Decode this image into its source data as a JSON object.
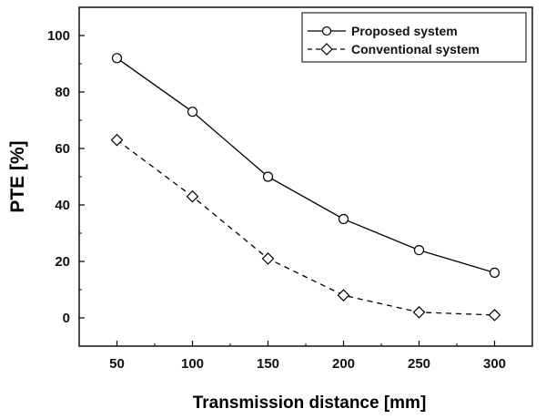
{
  "chart_data": {
    "type": "line",
    "title": "",
    "xlabel": "Transmission distance [mm]",
    "ylabel": "PTE [%]",
    "x": [
      50,
      100,
      150,
      200,
      250,
      300
    ],
    "xlim": [
      25,
      325
    ],
    "ylim": [
      -10,
      110
    ],
    "xticks": [
      "50",
      "100",
      "150",
      "200",
      "250",
      "300"
    ],
    "yticks": [
      "0",
      "20",
      "40",
      "60",
      "80",
      "100"
    ],
    "grid": false,
    "legend_position": "top-right",
    "series": [
      {
        "name": "Proposed system",
        "values": [
          92,
          73,
          50,
          35,
          24,
          16
        ],
        "marker": "circle",
        "line_style": "solid",
        "color": "#000000"
      },
      {
        "name": "Conventional system",
        "values": [
          63,
          43,
          21,
          8,
          2,
          1
        ],
        "marker": "diamond",
        "line_style": "dashed",
        "color": "#000000"
      }
    ]
  }
}
